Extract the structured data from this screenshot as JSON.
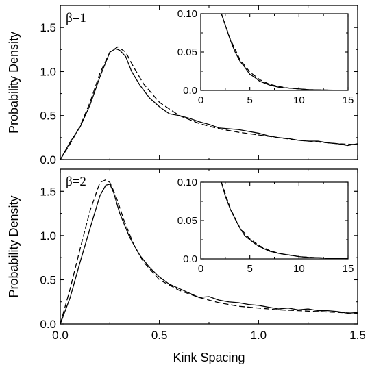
{
  "chart_data": [
    {
      "type": "line",
      "panel_label": "β=1",
      "xlabel": "",
      "ylabel": "Probability Density",
      "xlim": [
        0,
        1.5
      ],
      "ylim": [
        0,
        1.75
      ],
      "xticks": [
        "0.0",
        "0.5",
        "1.0",
        "1.5"
      ],
      "yticks": [
        "0.0",
        "0.5",
        "1.0",
        "1.5"
      ],
      "series": [
        {
          "style": "solid",
          "x": [
            0,
            0.05,
            0.1,
            0.15,
            0.2,
            0.25,
            0.28,
            0.3,
            0.33,
            0.36,
            0.4,
            0.45,
            0.5,
            0.55,
            0.6,
            0.65,
            0.7,
            0.75,
            0.8,
            0.85,
            0.9,
            0.95,
            1.0,
            1.05,
            1.1,
            1.15,
            1.2,
            1.25,
            1.3,
            1.35,
            1.4,
            1.45,
            1.5
          ],
          "y": [
            0,
            0.2,
            0.37,
            0.62,
            0.94,
            1.22,
            1.26,
            1.24,
            1.17,
            1.0,
            0.85,
            0.7,
            0.6,
            0.52,
            0.5,
            0.47,
            0.43,
            0.4,
            0.36,
            0.35,
            0.34,
            0.32,
            0.3,
            0.27,
            0.25,
            0.24,
            0.22,
            0.21,
            0.21,
            0.19,
            0.18,
            0.16,
            0.18
          ]
        },
        {
          "style": "dashed",
          "x": [
            0,
            0.05,
            0.1,
            0.15,
            0.2,
            0.25,
            0.29,
            0.33,
            0.37,
            0.42,
            0.5,
            0.6,
            0.7,
            0.8,
            0.9,
            1.0,
            1.1,
            1.2,
            1.3,
            1.4,
            1.5
          ],
          "y": [
            0,
            0.18,
            0.38,
            0.65,
            0.98,
            1.22,
            1.28,
            1.22,
            1.05,
            0.86,
            0.65,
            0.5,
            0.41,
            0.35,
            0.31,
            0.28,
            0.25,
            0.22,
            0.2,
            0.18,
            0.17
          ]
        }
      ],
      "inset": {
        "xlim": [
          0,
          15
        ],
        "ylim": [
          0,
          0.1
        ],
        "xticks": [
          "0",
          "5",
          "10",
          "15"
        ],
        "yticks": [
          "0.0",
          "0.05",
          "0.10"
        ],
        "series": [
          {
            "style": "solid",
            "x": [
              2.1,
              2.5,
              3,
              3.5,
              4,
              4.5,
              5,
              5.5,
              6,
              7,
              8,
              9,
              10,
              11,
              12,
              13,
              14,
              15
            ],
            "y": [
              0.1,
              0.085,
              0.066,
              0.05,
              0.038,
              0.03,
              0.021,
              0.017,
              0.012,
              0.007,
              0.004,
              0.003,
              0.002,
              0.001,
              0.0006,
              0.0004,
              0.0002,
              0.0001
            ]
          },
          {
            "style": "dashed",
            "x": [
              2.1,
              3,
              4,
              5,
              6,
              7,
              8,
              9,
              10,
              11,
              12,
              13,
              14,
              15
            ],
            "y": [
              0.1,
              0.067,
              0.04,
              0.024,
              0.014,
              0.008,
              0.005,
              0.003,
              0.002,
              0.001,
              0.0007,
              0.0004,
              0.0002,
              0.0001
            ]
          }
        ]
      }
    },
    {
      "type": "line",
      "panel_label": "β=2",
      "xlabel": "Kink Spacing",
      "ylabel": "Probability Density",
      "xlim": [
        0,
        1.5
      ],
      "ylim": [
        0,
        1.75
      ],
      "xticks": [
        "0.0",
        "0.5",
        "1.0",
        "1.5"
      ],
      "yticks": [
        "0.0",
        "0.5",
        "1.0",
        "1.5"
      ],
      "series": [
        {
          "style": "solid",
          "x": [
            0,
            0.05,
            0.1,
            0.15,
            0.2,
            0.23,
            0.25,
            0.27,
            0.3,
            0.35,
            0.4,
            0.45,
            0.5,
            0.55,
            0.6,
            0.65,
            0.7,
            0.75,
            0.8,
            0.85,
            0.9,
            0.95,
            1.0,
            1.05,
            1.1,
            1.15,
            1.2,
            1.25,
            1.3,
            1.35,
            1.4,
            1.45,
            1.5
          ],
          "y": [
            0,
            0.3,
            0.7,
            1.08,
            1.45,
            1.57,
            1.58,
            1.48,
            1.25,
            0.98,
            0.78,
            0.64,
            0.53,
            0.45,
            0.4,
            0.35,
            0.3,
            0.31,
            0.27,
            0.25,
            0.24,
            0.22,
            0.21,
            0.19,
            0.17,
            0.18,
            0.16,
            0.17,
            0.15,
            0.15,
            0.14,
            0.12,
            0.13
          ]
        },
        {
          "style": "dashed",
          "x": [
            0,
            0.05,
            0.1,
            0.15,
            0.2,
            0.23,
            0.25,
            0.28,
            0.32,
            0.37,
            0.42,
            0.5,
            0.6,
            0.7,
            0.8,
            0.9,
            1.0,
            1.1,
            1.2,
            1.3,
            1.4,
            1.5
          ],
          "y": [
            0,
            0.4,
            0.85,
            1.28,
            1.6,
            1.63,
            1.6,
            1.45,
            1.18,
            0.9,
            0.7,
            0.5,
            0.38,
            0.3,
            0.24,
            0.2,
            0.18,
            0.16,
            0.15,
            0.14,
            0.13,
            0.12
          ]
        }
      ],
      "inset": {
        "xlim": [
          0,
          15
        ],
        "ylim": [
          0,
          0.1
        ],
        "xticks": [
          "0",
          "5",
          "10",
          "15"
        ],
        "yticks": [
          "0.0",
          "0.05",
          "0.10"
        ],
        "series": [
          {
            "style": "solid",
            "x": [
              2.1,
              2.5,
              3,
              3.5,
              4,
              4.5,
              5,
              5.5,
              6,
              7,
              8,
              9,
              10,
              11,
              12,
              13,
              14,
              15
            ],
            "y": [
              0.1,
              0.082,
              0.065,
              0.052,
              0.04,
              0.03,
              0.025,
              0.02,
              0.016,
              0.01,
              0.007,
              0.005,
              0.003,
              0.002,
              0.0015,
              0.001,
              0.0007,
              0.0004
            ]
          },
          {
            "style": "dashed",
            "x": [
              2.1,
              3,
              4,
              5,
              6,
              7,
              8,
              9,
              10,
              11,
              12,
              13,
              14,
              15
            ],
            "y": [
              0.1,
              0.066,
              0.04,
              0.026,
              0.017,
              0.011,
              0.007,
              0.005,
              0.003,
              0.002,
              0.0015,
              0.001,
              0.0006,
              0.0004
            ]
          }
        ]
      }
    }
  ]
}
